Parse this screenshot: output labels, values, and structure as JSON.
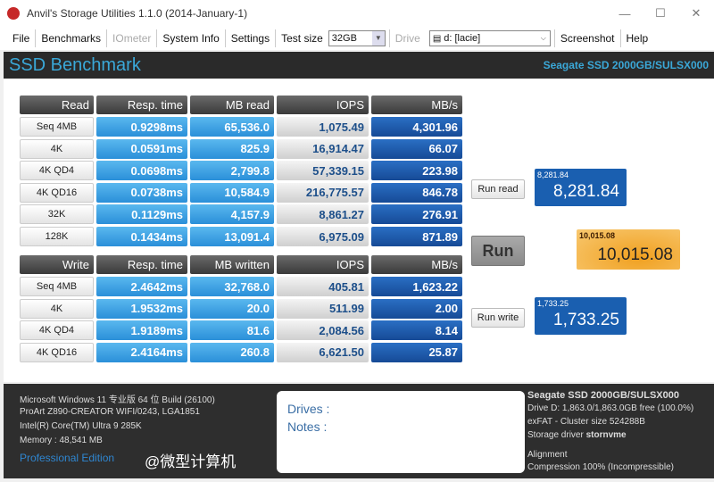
{
  "window": {
    "title": "Anvil's Storage Utilities 1.1.0 (2014-January-1)",
    "minimize": "—",
    "maximize": "☐",
    "close": "✕"
  },
  "menu": {
    "file": "File",
    "benchmarks": "Benchmarks",
    "iometer": "IOmeter",
    "system_info": "System Info",
    "settings": "Settings",
    "test_size_label": "Test size",
    "test_size_value": "32GB",
    "drive_label": "Drive",
    "drive_value": "d: [lacie]",
    "screenshot": "Screenshot",
    "help": "Help"
  },
  "header": {
    "title": "SSD Benchmark",
    "device": "Seagate SSD 2000GB/SULSX000"
  },
  "read": {
    "headers": [
      "Read",
      "Resp. time",
      "MB read",
      "IOPS",
      "MB/s"
    ],
    "rows": [
      [
        "Seq 4MB",
        "0.9298ms",
        "65,536.0",
        "1,075.49",
        "4,301.96"
      ],
      [
        "4K",
        "0.0591ms",
        "825.9",
        "16,914.47",
        "66.07"
      ],
      [
        "4K QD4",
        "0.0698ms",
        "2,799.8",
        "57,339.15",
        "223.98"
      ],
      [
        "4K QD16",
        "0.0738ms",
        "10,584.9",
        "216,775.57",
        "846.78"
      ],
      [
        "32K",
        "0.1129ms",
        "4,157.9",
        "8,861.27",
        "276.91"
      ],
      [
        "128K",
        "0.1434ms",
        "13,091.4",
        "6,975.09",
        "871.89"
      ]
    ]
  },
  "write": {
    "headers": [
      "Write",
      "Resp. time",
      "MB written",
      "IOPS",
      "MB/s"
    ],
    "rows": [
      [
        "Seq 4MB",
        "2.4642ms",
        "32,768.0",
        "405.81",
        "1,623.22"
      ],
      [
        "4K",
        "1.9532ms",
        "20.0",
        "511.99",
        "2.00"
      ],
      [
        "4K QD4",
        "1.9189ms",
        "81.6",
        "2,084.56",
        "8.14"
      ],
      [
        "4K QD16",
        "2.4164ms",
        "260.8",
        "6,621.50",
        "25.87"
      ]
    ]
  },
  "buttons": {
    "run_read": "Run read",
    "run": "Run",
    "run_write": "Run write"
  },
  "scores": {
    "read_small": "8,281.84",
    "read": "8,281.84",
    "total_small": "10,015.08",
    "total": "10,015.08",
    "write_small": "1,733.25",
    "write": "1,733.25"
  },
  "system": {
    "os": "Microsoft Windows 11 专业版 64 位 Build (26100)",
    "board": "ProArt Z890-CREATOR WIFI/0243, LGA1851",
    "cpu": "Intel(R) Core(TM) Ultra 9 285K",
    "memory": "Memory : 48,541 MB",
    "edition": "Professional Edition"
  },
  "notes": {
    "drives": "Drives :",
    "notes": "Notes :"
  },
  "drive_info": {
    "name": "Seagate SSD 2000GB/SULSX000",
    "space": "Drive D: 1,863.0/1,863.0GB free (100.0%)",
    "fs": "exFAT - Cluster size 524288B",
    "driver_label": "Storage driver",
    "driver": "stornvme",
    "alignment": "Alignment",
    "compression": "Compression 100% (Incompressible)"
  },
  "watermark": "@微型计算机"
}
